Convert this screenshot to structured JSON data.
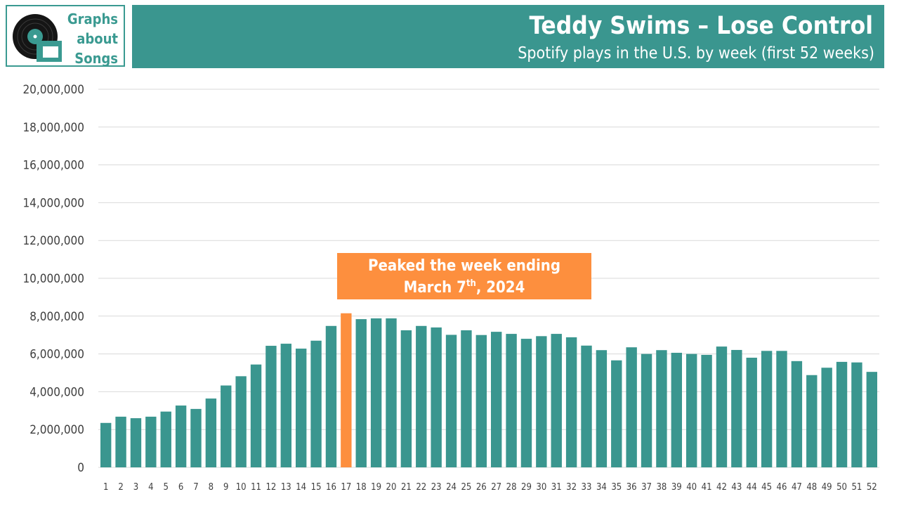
{
  "logo": {
    "line1": "Graphs",
    "line2": "about",
    "line3": "Songs"
  },
  "header": {
    "title": "Teddy Swims – Lose Control",
    "subtitle": "Spotify plays in the U.S. by week (first 52 weeks)"
  },
  "annotation": {
    "line1": "Peaked the week ending",
    "line2_prefix": "March 7",
    "line2_sup": "th",
    "line2_suffix": ", 2024"
  },
  "colors": {
    "bar": "#3a968f",
    "highlight": "#fd8f3e",
    "banner": "#3a968f"
  },
  "chart_data": {
    "type": "bar",
    "title": "Teddy Swims – Lose Control",
    "subtitle": "Spotify plays in the U.S. by week (first 52 weeks)",
    "xlabel": "",
    "ylabel": "",
    "ylim": [
      0,
      20000000
    ],
    "yticks": [
      0,
      2000000,
      4000000,
      6000000,
      8000000,
      10000000,
      12000000,
      14000000,
      16000000,
      18000000,
      20000000
    ],
    "ytick_labels": [
      "0",
      "2,000,000",
      "4,000,000",
      "6,000,000",
      "8,000,000",
      "10,000,000",
      "12,000,000",
      "14,000,000",
      "16,000,000",
      "18,000,000",
      "20,000,000"
    ],
    "grid": true,
    "highlight_index": 16,
    "categories": [
      "1",
      "2",
      "3",
      "4",
      "5",
      "6",
      "7",
      "8",
      "9",
      "10",
      "11",
      "12",
      "13",
      "14",
      "15",
      "16",
      "17",
      "18",
      "19",
      "20",
      "21",
      "22",
      "23",
      "24",
      "25",
      "26",
      "27",
      "28",
      "29",
      "30",
      "31",
      "32",
      "33",
      "34",
      "35",
      "36",
      "37",
      "38",
      "39",
      "40",
      "41",
      "42",
      "43",
      "44",
      "45",
      "46",
      "47",
      "48",
      "49",
      "50",
      "51",
      "52"
    ],
    "values": [
      2350000,
      2680000,
      2600000,
      2680000,
      2950000,
      3270000,
      3090000,
      3640000,
      4330000,
      4820000,
      5440000,
      6430000,
      6540000,
      6280000,
      6700000,
      7480000,
      8150000,
      7840000,
      7880000,
      7880000,
      7250000,
      7480000,
      7400000,
      7010000,
      7250000,
      7000000,
      7170000,
      7060000,
      6800000,
      6940000,
      7060000,
      6880000,
      6440000,
      6200000,
      5660000,
      6350000,
      6000000,
      6200000,
      6060000,
      6000000,
      5950000,
      6390000,
      6210000,
      5800000,
      6160000,
      6160000,
      5620000,
      4880000,
      5270000,
      5580000,
      5550000,
      5050000
    ]
  }
}
